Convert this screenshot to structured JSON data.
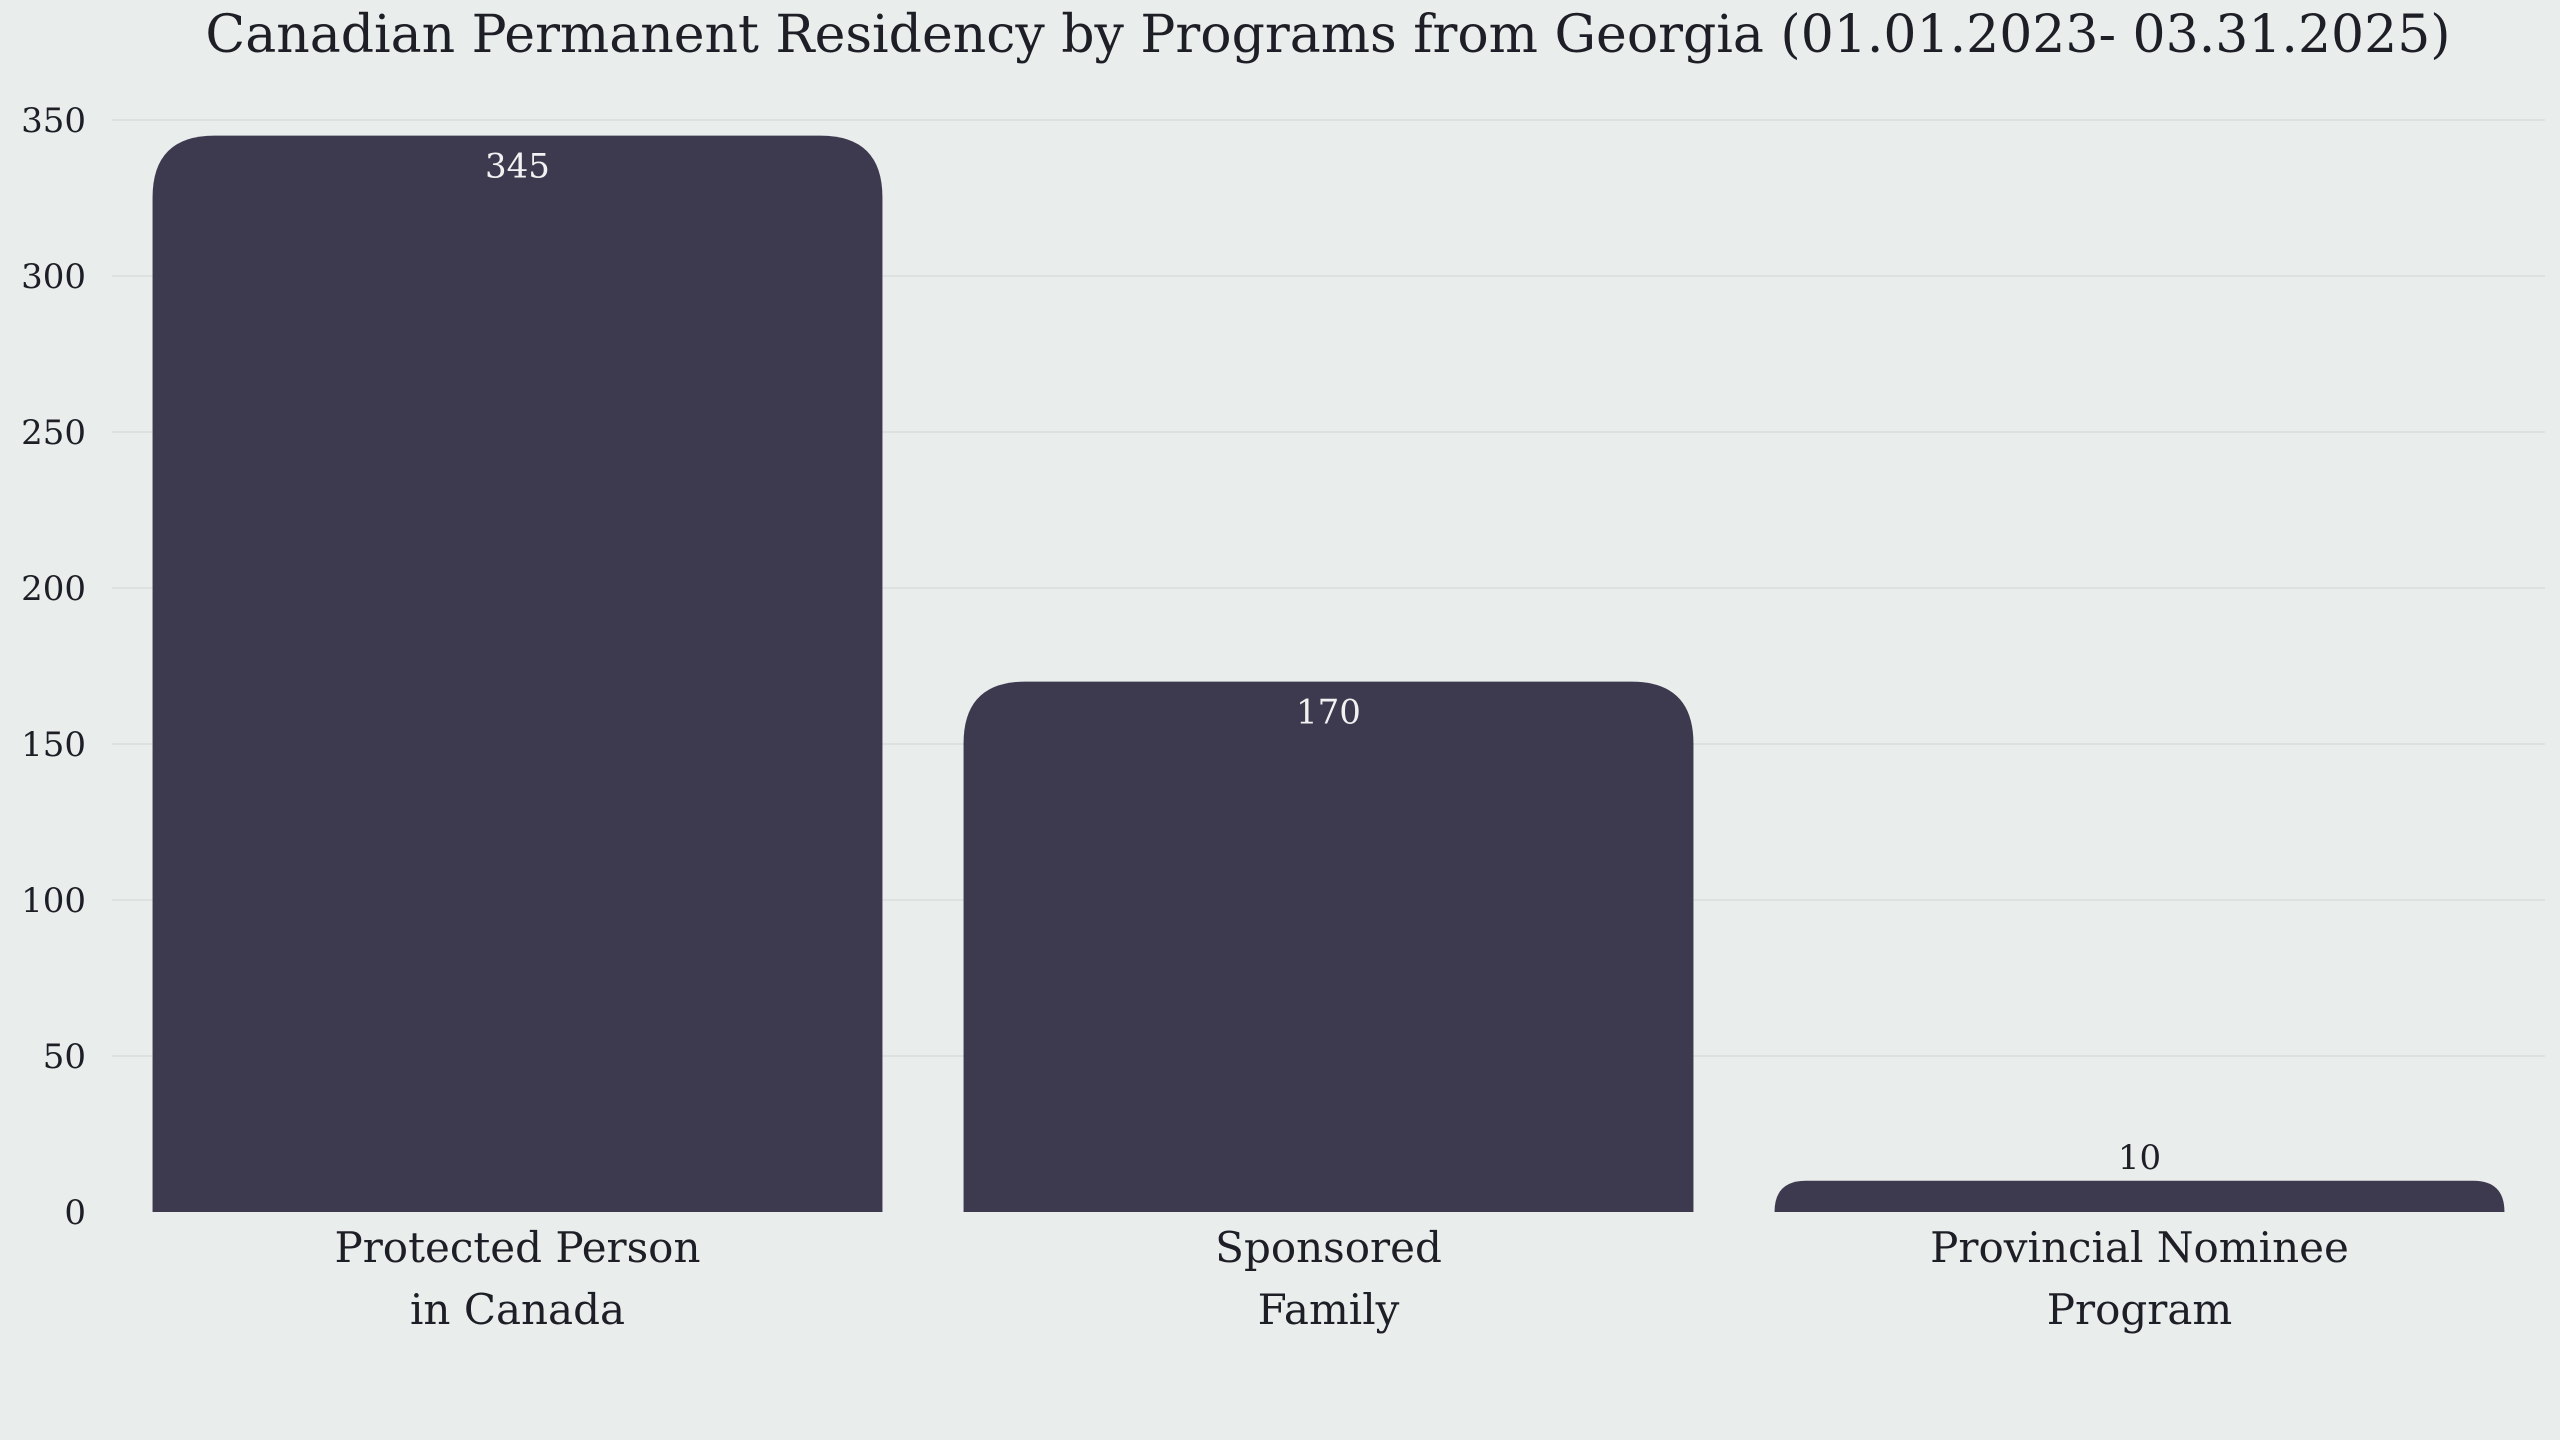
{
  "chart_data": {
    "type": "bar",
    "title": "Canadian Permanent Residency by Programs from Georgia (01.01.2023- 03.31.2025)",
    "xlabel": "",
    "ylabel": "",
    "categories": [
      [
        "Protected Person",
        "in Canada"
      ],
      [
        "Sponsored",
        "Family"
      ],
      [
        "Provincial Nominee",
        "Program"
      ]
    ],
    "values": [
      345,
      170,
      10
    ],
    "ylim": [
      0,
      350
    ],
    "yticks": [
      0,
      50,
      100,
      150,
      200,
      250,
      300,
      350
    ],
    "grid": true,
    "legend": "none",
    "bar_color": "#3d3a50",
    "label_color_inside": "#f2f2f2",
    "label_color_outside": "#1e1e26",
    "background": "#e9edec"
  }
}
